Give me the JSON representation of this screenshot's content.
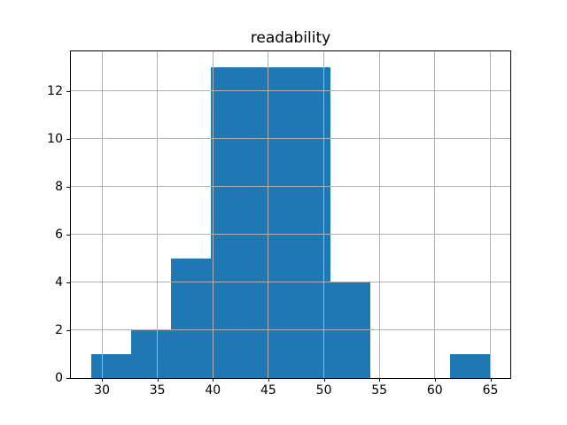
{
  "chart_data": {
    "type": "bar",
    "subtype": "histogram",
    "title": "readability",
    "xlabel": "",
    "ylabel": "",
    "bin_edges": [
      29.0,
      32.6,
      36.2,
      39.8,
      43.4,
      47.0,
      50.6,
      54.2,
      57.8,
      61.4,
      65.0
    ],
    "counts": [
      1,
      2,
      5,
      13,
      13,
      13,
      4,
      0,
      0,
      1
    ],
    "xticks": [
      30,
      35,
      40,
      45,
      50,
      55,
      60,
      65
    ],
    "yticks": [
      0,
      2,
      4,
      6,
      8,
      10,
      12
    ],
    "xlim": [
      27.2,
      66.8
    ],
    "ylim": [
      0,
      13.65
    ],
    "grid": true,
    "grid_above_bars": true,
    "legend": "none",
    "colors": {
      "bar": "#1f77b4",
      "grid": "#b0b0b0",
      "axis": "#000000",
      "text": "#000000",
      "background": "#ffffff"
    }
  }
}
